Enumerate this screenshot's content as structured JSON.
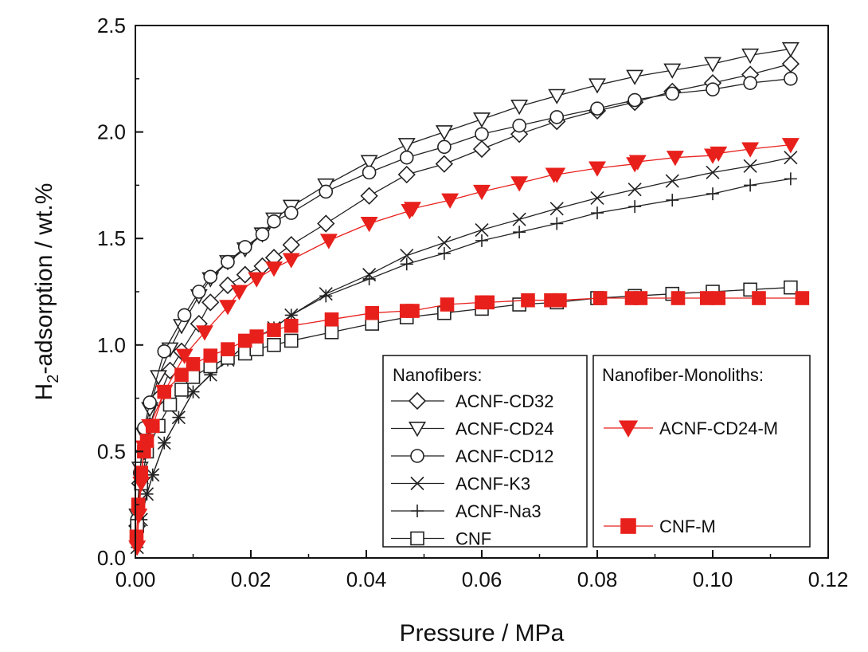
{
  "chart_data": {
    "type": "scatter",
    "xlabel": "Pressure / MPa",
    "ylabel_parts": {
      "prefix": "H",
      "subscript": "2",
      "suffix": "-adsorption / wt.%"
    },
    "xlim": [
      0,
      0.12
    ],
    "ylim": [
      0,
      2.5
    ],
    "xticks": [
      "0.00",
      "0.02",
      "0.04",
      "0.06",
      "0.08",
      "0.10",
      "0.12"
    ],
    "yticks": [
      "0.0",
      "0.5",
      "1.0",
      "1.5",
      "2.0",
      "2.5"
    ],
    "legend": {
      "left_title": "Nanofibers:",
      "right_title": "Nanofiber-Monoliths:"
    },
    "colors": {
      "black": "#222222",
      "red": "#e8201c"
    },
    "series": [
      {
        "name": "ACNF-CD32",
        "marker": "diamond",
        "filled": false,
        "color": "#222222",
        "group": "left",
        "x": [
          0.0003,
          0.0008,
          0.0015,
          0.0025,
          0.004,
          0.006,
          0.008,
          0.011,
          0.013,
          0.016,
          0.019,
          0.022,
          0.024,
          0.027,
          0.033,
          0.0405,
          0.047,
          0.0535,
          0.06,
          0.0665,
          0.073,
          0.08,
          0.0865,
          0.093,
          0.1,
          0.1065,
          0.1135
        ],
        "y": [
          0.15,
          0.35,
          0.5,
          0.62,
          0.75,
          0.88,
          0.97,
          1.1,
          1.2,
          1.28,
          1.33,
          1.37,
          1.41,
          1.47,
          1.57,
          1.7,
          1.8,
          1.85,
          1.92,
          1.99,
          2.05,
          2.1,
          2.14,
          2.19,
          2.23,
          2.27,
          2.32
        ]
      },
      {
        "name": "ACNF-CD24",
        "marker": "triangle-down",
        "filled": false,
        "color": "#222222",
        "group": "left",
        "x": [
          0.0003,
          0.0008,
          0.0015,
          0.0025,
          0.004,
          0.006,
          0.008,
          0.011,
          0.013,
          0.016,
          0.019,
          0.022,
          0.024,
          0.027,
          0.033,
          0.0405,
          0.047,
          0.0535,
          0.06,
          0.0665,
          0.073,
          0.08,
          0.0865,
          0.093,
          0.1,
          0.1065,
          0.1135
        ],
        "y": [
          0.2,
          0.42,
          0.58,
          0.7,
          0.85,
          0.98,
          1.09,
          1.23,
          1.31,
          1.39,
          1.45,
          1.52,
          1.59,
          1.65,
          1.75,
          1.86,
          1.94,
          2.0,
          2.06,
          2.12,
          2.17,
          2.22,
          2.26,
          2.29,
          2.32,
          2.36,
          2.39
        ]
      },
      {
        "name": "ACNF-CD12",
        "marker": "circle",
        "filled": false,
        "color": "#222222",
        "group": "left",
        "x": [
          0.0003,
          0.0008,
          0.0015,
          0.0025,
          0.005,
          0.0085,
          0.011,
          0.013,
          0.016,
          0.019,
          0.022,
          0.024,
          0.027,
          0.033,
          0.0405,
          0.047,
          0.0535,
          0.06,
          0.0665,
          0.073,
          0.08,
          0.0865,
          0.093,
          0.1,
          0.1065,
          0.1135
        ],
        "y": [
          0.18,
          0.4,
          0.61,
          0.73,
          0.97,
          1.14,
          1.25,
          1.32,
          1.39,
          1.46,
          1.52,
          1.58,
          1.62,
          1.72,
          1.81,
          1.88,
          1.93,
          1.99,
          2.03,
          2.07,
          2.11,
          2.15,
          2.18,
          2.2,
          2.23,
          2.25
        ]
      },
      {
        "name": "ACNF-K3",
        "marker": "x",
        "filled": false,
        "color": "#222222",
        "group": "left",
        "x": [
          0.0003,
          0.001,
          0.002,
          0.003,
          0.005,
          0.0075,
          0.01,
          0.013,
          0.016,
          0.02,
          0.024,
          0.027,
          0.033,
          0.0405,
          0.047,
          0.0535,
          0.06,
          0.0665,
          0.073,
          0.08,
          0.0865,
          0.093,
          0.1,
          0.1065,
          0.1135
        ],
        "y": [
          0.05,
          0.18,
          0.3,
          0.39,
          0.54,
          0.66,
          0.78,
          0.86,
          0.93,
          1.02,
          1.08,
          1.14,
          1.24,
          1.33,
          1.42,
          1.48,
          1.54,
          1.59,
          1.64,
          1.69,
          1.73,
          1.77,
          1.81,
          1.84,
          1.88
        ]
      },
      {
        "name": "ACNF-Na3",
        "marker": "plus",
        "filled": false,
        "color": "#222222",
        "group": "left",
        "x": [
          0.0003,
          0.001,
          0.002,
          0.003,
          0.005,
          0.0075,
          0.01,
          0.013,
          0.016,
          0.02,
          0.024,
          0.027,
          0.033,
          0.0405,
          0.047,
          0.0535,
          0.06,
          0.0665,
          0.073,
          0.08,
          0.0865,
          0.093,
          0.1,
          0.1065,
          0.1135
        ],
        "y": [
          0.05,
          0.18,
          0.3,
          0.39,
          0.54,
          0.66,
          0.78,
          0.86,
          0.93,
          1.02,
          1.08,
          1.14,
          1.23,
          1.31,
          1.38,
          1.43,
          1.49,
          1.53,
          1.57,
          1.62,
          1.65,
          1.68,
          1.71,
          1.75,
          1.78
        ]
      },
      {
        "name": "CNF",
        "marker": "square",
        "filled": false,
        "color": "#222222",
        "group": "left",
        "x": [
          0.0003,
          0.001,
          0.002,
          0.004,
          0.006,
          0.008,
          0.01,
          0.013,
          0.016,
          0.019,
          0.021,
          0.024,
          0.027,
          0.034,
          0.041,
          0.047,
          0.0535,
          0.06,
          0.0665,
          0.073,
          0.08,
          0.0865,
          0.093,
          0.1,
          0.1065,
          0.1135
        ],
        "y": [
          0.15,
          0.35,
          0.5,
          0.62,
          0.72,
          0.79,
          0.85,
          0.9,
          0.94,
          0.96,
          0.98,
          1.0,
          1.02,
          1.06,
          1.1,
          1.13,
          1.15,
          1.17,
          1.19,
          1.2,
          1.22,
          1.23,
          1.24,
          1.25,
          1.26,
          1.27
        ]
      },
      {
        "name": "ACNF-CD24-M",
        "marker": "triangle-down",
        "filled": true,
        "color": "#e8201c",
        "group": "right",
        "x": [
          0.0003,
          0.0006,
          0.001,
          0.0015,
          0.0025,
          0.005,
          0.0085,
          0.012,
          0.016,
          0.018,
          0.021,
          0.024,
          0.027,
          0.0335,
          0.0405,
          0.0475,
          0.048,
          0.0545,
          0.06,
          0.0665,
          0.0725,
          0.073,
          0.08,
          0.0865,
          0.087,
          0.0935,
          0.1,
          0.101,
          0.1065,
          0.1135
        ],
        "y": [
          0.05,
          0.2,
          0.35,
          0.52,
          0.62,
          0.78,
          0.95,
          1.06,
          1.18,
          1.25,
          1.31,
          1.36,
          1.4,
          1.49,
          1.57,
          1.63,
          1.64,
          1.68,
          1.72,
          1.76,
          1.8,
          1.8,
          1.83,
          1.85,
          1.86,
          1.88,
          1.89,
          1.9,
          1.92,
          1.94
        ]
      },
      {
        "name": "CNF-M",
        "marker": "square",
        "filled": true,
        "color": "#e8201c",
        "group": "right",
        "x": [
          0.0002,
          0.0005,
          0.001,
          0.0015,
          0.002,
          0.003,
          0.005,
          0.008,
          0.01,
          0.013,
          0.016,
          0.019,
          0.021,
          0.024,
          0.027,
          0.034,
          0.041,
          0.047,
          0.048,
          0.054,
          0.06,
          0.061,
          0.068,
          0.072,
          0.0735,
          0.0805,
          0.086,
          0.0875,
          0.094,
          0.099,
          0.101,
          0.108,
          0.1155
        ],
        "y": [
          0.1,
          0.25,
          0.4,
          0.5,
          0.55,
          0.62,
          0.78,
          0.86,
          0.91,
          0.95,
          0.98,
          1.02,
          1.04,
          1.07,
          1.09,
          1.12,
          1.15,
          1.16,
          1.16,
          1.19,
          1.2,
          1.2,
          1.21,
          1.21,
          1.21,
          1.22,
          1.22,
          1.22,
          1.22,
          1.22,
          1.22,
          1.22,
          1.22
        ]
      }
    ]
  }
}
